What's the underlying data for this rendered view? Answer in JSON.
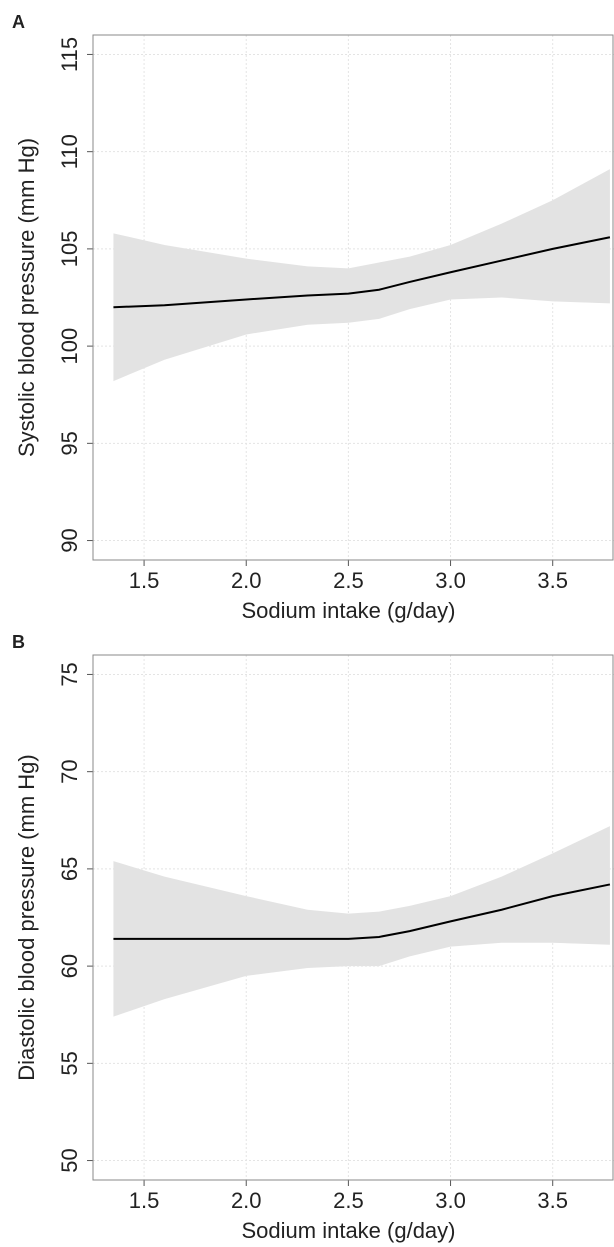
{
  "chart_data": [
    {
      "type": "line",
      "panel_label": "A",
      "xlabel": "Sodium intake (g/day)",
      "ylabel": "Systolic blood pressure (mm Hg)",
      "x": [
        1.35,
        1.6,
        2.0,
        2.3,
        2.5,
        2.65,
        2.8,
        3.0,
        3.25,
        3.5,
        3.78
      ],
      "series": [
        {
          "color": "#000000",
          "band_color": "#e3e3e3",
          "values": [
            102.0,
            102.1,
            102.4,
            102.6,
            102.7,
            102.9,
            103.3,
            103.8,
            104.4,
            105.0,
            105.6
          ],
          "lower": [
            98.2,
            99.3,
            100.6,
            101.1,
            101.2,
            101.4,
            101.9,
            102.4,
            102.5,
            102.3,
            102.2
          ],
          "upper": [
            105.8,
            105.2,
            104.5,
            104.1,
            104.0,
            104.3,
            104.6,
            105.2,
            106.3,
            107.5,
            109.1
          ]
        }
      ],
      "xlim": [
        1.25,
        3.8
      ],
      "xticks": [
        {
          "value": 1.5,
          "label": "1.5"
        },
        {
          "value": 2,
          "label": "2.0"
        },
        {
          "value": 2.5,
          "label": "2.5"
        },
        {
          "value": 3,
          "label": "3.0"
        },
        {
          "value": 3.5,
          "label": "3.5"
        }
      ],
      "ylim": [
        89,
        116
      ],
      "yticks": [
        90,
        95,
        100,
        105,
        110,
        115
      ],
      "grid": true
    },
    {
      "type": "line",
      "panel_label": "B",
      "xlabel": "Sodium intake (g/day)",
      "ylabel": "Diastolic blood pressure (mm Hg)",
      "x": [
        1.35,
        1.6,
        2.0,
        2.3,
        2.5,
        2.65,
        2.8,
        3.0,
        3.25,
        3.5,
        3.78
      ],
      "series": [
        {
          "color": "#000000",
          "band_color": "#e3e3e3",
          "values": [
            61.4,
            61.4,
            61.4,
            61.4,
            61.4,
            61.5,
            61.8,
            62.3,
            62.9,
            63.6,
            64.2
          ],
          "lower": [
            57.4,
            58.3,
            59.5,
            59.9,
            60.0,
            60.0,
            60.5,
            61.0,
            61.2,
            61.2,
            61.1
          ],
          "upper": [
            65.4,
            64.6,
            63.6,
            62.9,
            62.7,
            62.8,
            63.1,
            63.6,
            64.6,
            65.8,
            67.2
          ]
        }
      ],
      "xlim": [
        1.25,
        3.8
      ],
      "xticks": [
        {
          "value": 1.5,
          "label": "1.5"
        },
        {
          "value": 2,
          "label": "2.0"
        },
        {
          "value": 2.5,
          "label": "2.5"
        },
        {
          "value": 3,
          "label": "3.0"
        },
        {
          "value": 3.5,
          "label": "3.5"
        }
      ],
      "ylim": [
        49,
        76
      ],
      "yticks": [
        50,
        55,
        60,
        65,
        70,
        75
      ],
      "grid": true
    }
  ]
}
